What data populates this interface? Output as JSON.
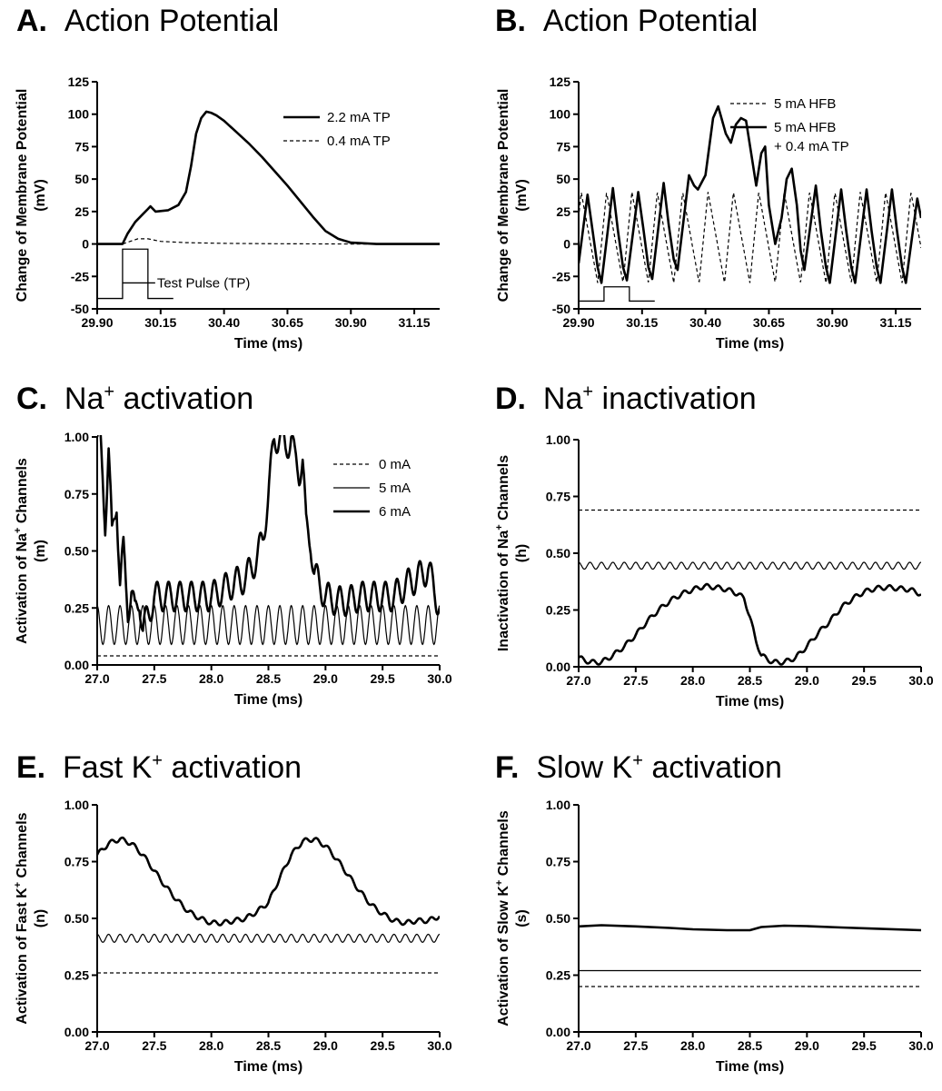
{
  "chart_data": [
    {
      "panel": "A",
      "type": "line",
      "title_letter": "A.",
      "title": "Action Potential",
      "xlabel": "Time (ms)",
      "ylabel": "Change of Membrane Potential (mV)",
      "ylabel_lines": [
        "Change of Membrane Potential",
        "(mV)"
      ],
      "xlim": [
        29.9,
        31.25
      ],
      "ylim": [
        -50,
        125
      ],
      "xticks": [
        29.9,
        30.15,
        30.4,
        30.65,
        30.9,
        31.15
      ],
      "xtick_labels": [
        "29.90",
        "30.15",
        "30.40",
        "30.65",
        "30.90",
        "31.15"
      ],
      "yticks": [
        -50,
        -25,
        0,
        25,
        50,
        75,
        100,
        125
      ],
      "ytick_labels": [
        "-50",
        "-25",
        "0",
        "25",
        "50",
        "75",
        "100",
        "125"
      ],
      "legend_position": "top-right",
      "series": [
        {
          "name": "2.2 mA TP",
          "style": "solid-thick",
          "x": [
            29.9,
            30.0,
            30.02,
            30.05,
            30.08,
            30.1,
            30.11,
            30.13,
            30.18,
            30.22,
            30.25,
            30.27,
            30.29,
            30.31,
            30.33,
            30.35,
            30.37,
            30.4,
            30.45,
            30.5,
            30.55,
            30.6,
            30.65,
            30.7,
            30.75,
            30.8,
            30.85,
            30.9,
            31.0,
            31.25
          ],
          "y": [
            0,
            0,
            8,
            17,
            23,
            27,
            29,
            25,
            26,
            30,
            40,
            60,
            85,
            97,
            102,
            101,
            99,
            95,
            86,
            77,
            67,
            56,
            45,
            33,
            21,
            10,
            4,
            1,
            0,
            0
          ]
        },
        {
          "name": "0.4 mA TP",
          "style": "dashed-thin",
          "x": [
            29.9,
            30.0,
            30.03,
            30.06,
            30.1,
            30.15,
            30.25,
            30.4,
            30.6,
            30.9,
            31.25
          ],
          "y": [
            0,
            0,
            2,
            4,
            4,
            2,
            1,
            0.5,
            0.2,
            0,
            0
          ]
        }
      ],
      "annotation": "Test Pulse (TP)",
      "pulse": {
        "x_on": 30.0,
        "x_off": 30.1,
        "baseline": -42,
        "high": -4,
        "low": -30
      }
    },
    {
      "panel": "B",
      "type": "line",
      "title_letter": "B.",
      "title": "Action Potential",
      "xlabel": "Time (ms)",
      "ylabel": "Change of Membrane Potential (mV)",
      "ylabel_lines": [
        "Change of Membrane Potential",
        "(mV)"
      ],
      "xlim": [
        29.9,
        31.25
      ],
      "ylim": [
        -50,
        125
      ],
      "xticks": [
        29.9,
        30.15,
        30.4,
        30.65,
        30.9,
        31.15
      ],
      "xtick_labels": [
        "29.90",
        "30.15",
        "30.40",
        "30.65",
        "30.90",
        "31.15"
      ],
      "yticks": [
        -50,
        -25,
        0,
        25,
        50,
        75,
        100,
        125
      ],
      "ytick_labels": [
        "-50",
        "-25",
        "0",
        "25",
        "50",
        "75",
        "100",
        "125"
      ],
      "legend_position": "top-right",
      "series": [
        {
          "name": "5 mA HFB",
          "style": "dashed-thin",
          "oscillation": {
            "period": 0.1,
            "min": -30,
            "max": 40,
            "phase": 29.875
          }
        },
        {
          "name": "5 mA HFB",
          "name_line2": "+ 0.4 mA TP",
          "style": "solid-thick",
          "x": [
            29.9,
            29.935,
            29.955,
            29.975,
            29.99,
            30.035,
            30.055,
            30.075,
            30.09,
            30.135,
            30.155,
            30.175,
            30.19,
            30.235,
            30.255,
            30.275,
            30.29,
            30.335,
            30.355,
            30.37,
            30.4,
            30.43,
            30.45,
            30.48,
            30.5,
            30.52,
            30.54,
            30.56,
            30.58,
            30.6,
            30.62,
            30.635,
            30.65,
            30.675,
            30.7,
            30.72,
            30.74,
            30.76,
            30.775,
            30.79,
            30.835,
            30.855,
            30.875,
            30.89,
            30.935,
            30.955,
            30.975,
            30.99,
            31.035,
            31.055,
            31.075,
            31.09,
            31.135,
            31.155,
            31.175,
            31.19,
            31.235,
            31.25
          ],
          "y": [
            -15,
            38,
            10,
            -18,
            -30,
            43,
            10,
            -18,
            -28,
            40,
            12,
            -18,
            -27,
            47,
            15,
            -12,
            -20,
            53,
            45,
            42,
            53,
            97,
            106,
            85,
            78,
            92,
            97,
            95,
            70,
            45,
            70,
            75,
            30,
            0,
            20,
            50,
            58,
            30,
            -5,
            -20,
            45,
            10,
            -18,
            -30,
            42,
            10,
            -18,
            -30,
            42,
            10,
            -18,
            -30,
            42,
            10,
            -18,
            -30,
            35,
            20
          ]
        }
      ],
      "pulse": {
        "x_on": 30.0,
        "x_off": 30.1,
        "baseline": -44,
        "high": -33
      }
    },
    {
      "panel": "C",
      "type": "line",
      "title_letter": "C.",
      "title_main": "Na",
      "title_sup": "+",
      "title_rest": " activation",
      "xlabel": "Time (ms)",
      "ylabel_lines": [
        "Activation of Na+ Channels",
        "(m)"
      ],
      "xlim": [
        27.0,
        30.0
      ],
      "ylim": [
        0,
        1.0
      ],
      "xticks": [
        27.0,
        27.5,
        28.0,
        28.5,
        29.0,
        29.5,
        30.0
      ],
      "xtick_labels": [
        "27.0",
        "27.5",
        "28.0",
        "28.5",
        "29.0",
        "29.5",
        "30.0"
      ],
      "yticks": [
        0,
        0.25,
        0.5,
        0.75,
        1.0
      ],
      "ytick_labels": [
        "0.00",
        "0.25",
        "0.50",
        "0.75",
        "1.00"
      ],
      "legend_position": "top-right",
      "series": [
        {
          "name": "0 mA",
          "style": "dashed-thin",
          "constant": 0.04
        },
        {
          "name": "5 mA",
          "style": "solid-thin",
          "oscillation": {
            "period": 0.1,
            "min": 0.09,
            "max": 0.26
          }
        },
        {
          "name": "6 mA",
          "style": "solid-thick",
          "x": [
            27.0,
            27.03,
            27.07,
            27.1,
            27.13,
            27.17,
            27.2,
            27.23,
            27.27,
            27.3,
            27.33,
            27.37,
            27.4,
            27.5,
            27.6,
            27.7,
            27.8,
            27.9,
            28.0,
            28.1,
            28.2,
            28.3,
            28.4,
            28.45,
            28.5,
            28.55,
            28.6,
            28.65,
            28.7,
            28.73,
            28.77,
            28.8,
            28.83,
            28.87,
            28.9,
            28.95,
            29.0,
            29.1,
            29.2,
            29.3,
            29.4,
            29.5,
            29.6,
            29.7,
            29.8,
            29.9,
            30.0
          ],
          "y": [
            1.0,
            0.95,
            0.63,
            0.95,
            0.55,
            0.73,
            0.35,
            0.5,
            0.25,
            0.32,
            0.22,
            0.3,
            0.15,
            0.3,
            0.3,
            0.3,
            0.3,
            0.3,
            0.3,
            0.33,
            0.36,
            0.38,
            0.47,
            0.55,
            0.75,
            0.99,
            1.0,
            0.95,
            1.0,
            0.9,
            0.85,
            0.9,
            0.6,
            0.55,
            0.4,
            0.35,
            0.3,
            0.28,
            0.28,
            0.3,
            0.3,
            0.3,
            0.3,
            0.35,
            0.38,
            0.42,
            0.25
          ],
          "oscillation_overlay": {
            "period": 0.1,
            "amplitude": 0.13
          }
        }
      ],
      "legend_order": [
        "0 mA",
        "5 mA",
        "6 mA"
      ]
    },
    {
      "panel": "D",
      "type": "line",
      "title_letter": "D.",
      "title_main": "Na",
      "title_sup": "+",
      "title_rest": " inactivation",
      "xlabel": "Time (ms)",
      "ylabel_lines": [
        "Inactivation of Na+ Channels",
        "(h)"
      ],
      "xlim": [
        27.0,
        30.0
      ],
      "ylim": [
        0,
        1.0
      ],
      "xticks": [
        27.0,
        27.5,
        28.0,
        28.5,
        29.0,
        29.5,
        30.0
      ],
      "xtick_labels": [
        "27.0",
        "27.5",
        "28.0",
        "28.5",
        "29.0",
        "29.5",
        "30.0"
      ],
      "yticks": [
        0,
        0.25,
        0.5,
        0.75,
        1.0
      ],
      "ytick_labels": [
        "0.00",
        "0.25",
        "0.50",
        "0.75",
        "1.00"
      ],
      "series": [
        {
          "style": "dashed-thin",
          "constant": 0.69
        },
        {
          "style": "solid-thin",
          "oscillation": {
            "period": 0.1,
            "min": 0.43,
            "max": 0.46
          }
        },
        {
          "style": "solid-thick",
          "x": [
            27.0,
            27.1,
            27.2,
            27.3,
            27.4,
            27.5,
            27.6,
            27.7,
            27.8,
            27.9,
            28.0,
            28.1,
            28.2,
            28.3,
            28.4,
            28.45,
            28.5,
            28.55,
            28.6,
            28.7,
            28.8,
            28.9,
            29.0,
            29.1,
            29.2,
            29.3,
            29.4,
            29.5,
            29.6,
            29.7,
            29.8,
            29.9,
            30.0
          ],
          "y": [
            0.04,
            0.02,
            0.02,
            0.05,
            0.09,
            0.14,
            0.2,
            0.25,
            0.29,
            0.32,
            0.34,
            0.355,
            0.35,
            0.34,
            0.32,
            0.3,
            0.22,
            0.12,
            0.05,
            0.02,
            0.02,
            0.04,
            0.09,
            0.15,
            0.2,
            0.26,
            0.3,
            0.33,
            0.345,
            0.35,
            0.345,
            0.34,
            0.32
          ],
          "oscillation_overlay": {
            "period": 0.1,
            "amplitude": 0.02
          }
        }
      ]
    },
    {
      "panel": "E",
      "type": "line",
      "title_letter": "E.",
      "title_main": "Fast K",
      "title_sup": "+",
      "title_rest": " activation",
      "xlabel": "Time (ms)",
      "ylabel_lines": [
        "Activation of Fast K+ Channels",
        "(n)"
      ],
      "xlim": [
        27.0,
        30.0
      ],
      "ylim": [
        0,
        1.0
      ],
      "xticks": [
        27.0,
        27.5,
        28.0,
        28.5,
        29.0,
        29.5,
        30.0
      ],
      "xtick_labels": [
        "27.0",
        "27.5",
        "28.0",
        "28.5",
        "29.0",
        "29.5",
        "30.0"
      ],
      "yticks": [
        0,
        0.25,
        0.5,
        0.75,
        1.0
      ],
      "ytick_labels": [
        "0.00",
        "0.25",
        "0.50",
        "0.75",
        "1.00"
      ],
      "series": [
        {
          "style": "dashed-thin",
          "constant": 0.26
        },
        {
          "style": "solid-thin",
          "oscillation": {
            "period": 0.1,
            "min": 0.395,
            "max": 0.43
          }
        },
        {
          "style": "solid-thick",
          "x": [
            27.0,
            27.1,
            27.2,
            27.3,
            27.4,
            27.5,
            27.6,
            27.7,
            27.8,
            27.9,
            28.0,
            28.1,
            28.2,
            28.3,
            28.4,
            28.5,
            28.6,
            28.7,
            28.8,
            28.9,
            29.0,
            29.1,
            29.2,
            29.3,
            29.4,
            29.5,
            29.6,
            29.7,
            29.8,
            29.9,
            30.0
          ],
          "y": [
            0.78,
            0.83,
            0.85,
            0.83,
            0.78,
            0.71,
            0.64,
            0.58,
            0.53,
            0.5,
            0.48,
            0.48,
            0.49,
            0.5,
            0.53,
            0.57,
            0.68,
            0.78,
            0.84,
            0.85,
            0.82,
            0.76,
            0.69,
            0.62,
            0.56,
            0.52,
            0.49,
            0.48,
            0.49,
            0.49,
            0.51
          ],
          "oscillation_overlay": {
            "period": 0.1,
            "amplitude": 0.02
          }
        }
      ]
    },
    {
      "panel": "F",
      "type": "line",
      "title_letter": "F.",
      "title_main": "Slow K",
      "title_sup": "+",
      "title_rest": " activation",
      "xlabel": "Time (ms)",
      "ylabel_lines": [
        "Activation of Slow K+ Channels",
        "(s)"
      ],
      "xlim": [
        27.0,
        30.0
      ],
      "ylim": [
        0,
        1.0
      ],
      "xticks": [
        27.0,
        27.5,
        28.0,
        28.5,
        29.0,
        29.5,
        30.0
      ],
      "xtick_labels": [
        "27.0",
        "27.5",
        "28.0",
        "28.5",
        "29.0",
        "29.5",
        "30.0"
      ],
      "yticks": [
        0,
        0.25,
        0.5,
        0.75,
        1.0
      ],
      "ytick_labels": [
        "0.00",
        "0.25",
        "0.50",
        "0.75",
        "1.00"
      ],
      "series": [
        {
          "style": "dashed-thin",
          "constant": 0.2
        },
        {
          "style": "solid-thin",
          "constant": 0.27
        },
        {
          "style": "solid-thick",
          "x": [
            27.0,
            27.2,
            27.5,
            27.8,
            28.0,
            28.3,
            28.5,
            28.6,
            28.8,
            29.0,
            29.3,
            29.6,
            30.0
          ],
          "y": [
            0.465,
            0.47,
            0.465,
            0.458,
            0.452,
            0.448,
            0.448,
            0.462,
            0.468,
            0.466,
            0.46,
            0.455,
            0.448
          ]
        }
      ]
    }
  ]
}
